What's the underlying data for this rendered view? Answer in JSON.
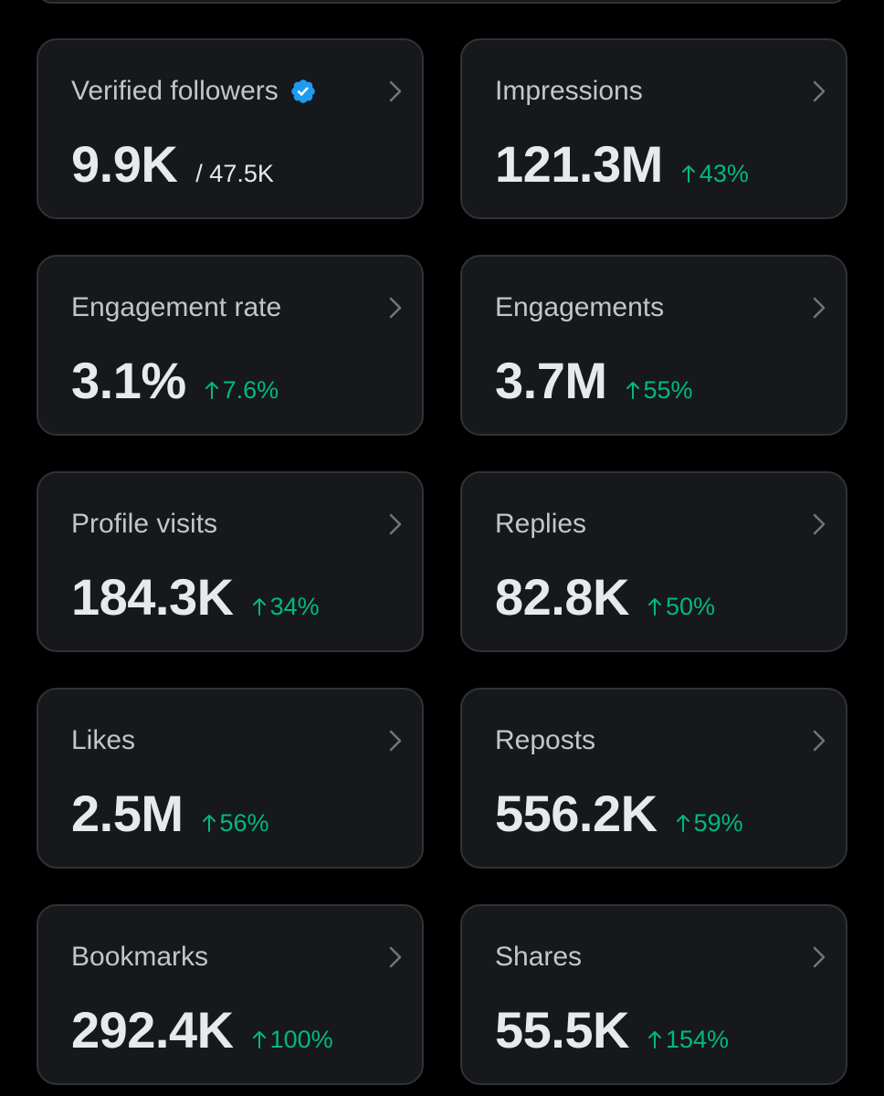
{
  "colors": {
    "background": "#000000",
    "card": "#16181c",
    "border": "#2f3336",
    "label": "#c2c6cb",
    "value": "#e7e9ea",
    "positive": "#00ba7c",
    "verified": "#1d9bf0"
  },
  "metrics": [
    {
      "label": "Verified followers",
      "value": "9.9K",
      "sub": "/ 47.5K",
      "verified_icon": "verified-badge-icon"
    },
    {
      "label": "Impressions",
      "value": "121.3M",
      "change": "43%"
    },
    {
      "label": "Engagement rate",
      "value": "3.1%",
      "change": "7.6%"
    },
    {
      "label": "Engagements",
      "value": "3.7M",
      "change": "55%"
    },
    {
      "label": "Profile visits",
      "value": "184.3K",
      "change": "34%"
    },
    {
      "label": "Replies",
      "value": "82.8K",
      "change": "50%"
    },
    {
      "label": "Likes",
      "value": "2.5M",
      "change": "56%"
    },
    {
      "label": "Reposts",
      "value": "556.2K",
      "change": "59%"
    },
    {
      "label": "Bookmarks",
      "value": "292.4K",
      "change": "100%"
    },
    {
      "label": "Shares",
      "value": "55.5K",
      "change": "154%"
    }
  ],
  "icons": {
    "chevron": "chevron-right-icon",
    "trend": "arrow-up-icon"
  }
}
